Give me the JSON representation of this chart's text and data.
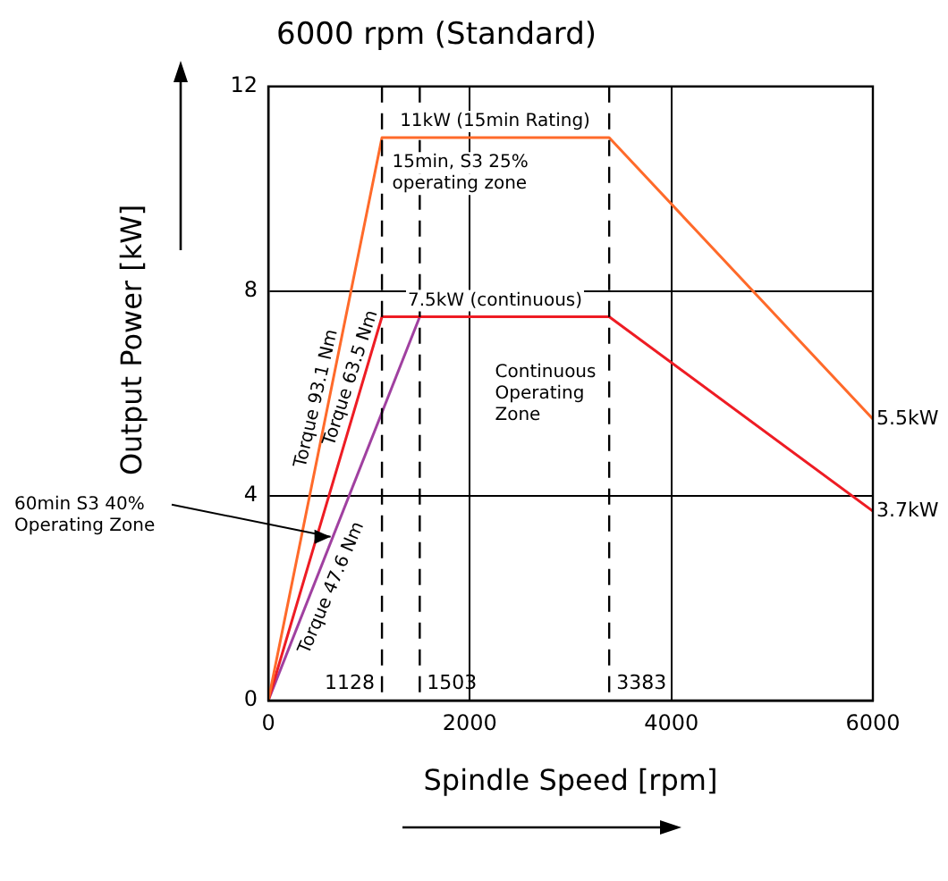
{
  "chart_data": {
    "type": "line",
    "title": "6000 rpm (Standard)",
    "xlabel": "Spindle Speed [rpm]",
    "ylabel": "Output Power [kW]",
    "series": [
      {
        "color": "#ff6a2a",
        "x": [
          0,
          1128,
          3383,
          6000
        ],
        "values": [
          0,
          11,
          11,
          5.5
        ]
      },
      {
        "color": "#ee1c24",
        "x": [
          0,
          1128,
          3383,
          6000
        ],
        "values": [
          0,
          7.5,
          7.5,
          3.7
        ]
      },
      {
        "color": "#a040a0",
        "x": [
          0,
          1503
        ],
        "values": [
          0,
          7.5
        ]
      }
    ],
    "xlim": [
      0,
      6000
    ],
    "xticks": [
      0,
      2000,
      4000,
      6000
    ],
    "ylim": [
      0,
      12
    ],
    "yticks": [
      0,
      4,
      8,
      12
    ],
    "grid": true,
    "marker": "none",
    "line_style": "solid",
    "ref_lines": [
      {
        "axis": "x",
        "value": 1128,
        "label": "1128",
        "line_style": "dashed",
        "color": "#000000"
      },
      {
        "axis": "x",
        "value": 1503,
        "label": "1503",
        "line_style": "dashed",
        "color": "#000000"
      },
      {
        "axis": "x",
        "value": 3383,
        "label": "3383",
        "line_style": "dashed",
        "color": "#000000"
      }
    ],
    "annotations": [
      {
        "text": "11kW (15min Rating)",
        "x": 2250,
        "y": 11
      },
      "15min, S3 25%\noperating zone",
      {
        "text": "7.5kW (continuous)",
        "x": 2250,
        "y": 7.5
      },
      "Continuous\nOperating\nZone",
      {
        "text": "5.5kW",
        "x": 6000,
        "y": 5.5
      },
      {
        "text": "3.7kW",
        "x": 6000,
        "y": 3.7
      },
      "Torque 93.1 Nm",
      "Torque 63.5 Nm",
      "Torque 47.6 Nm",
      {
        "text": "60min S3 40%\nOperating Zone",
        "x": 618,
        "y": 3.2
      }
    ]
  }
}
